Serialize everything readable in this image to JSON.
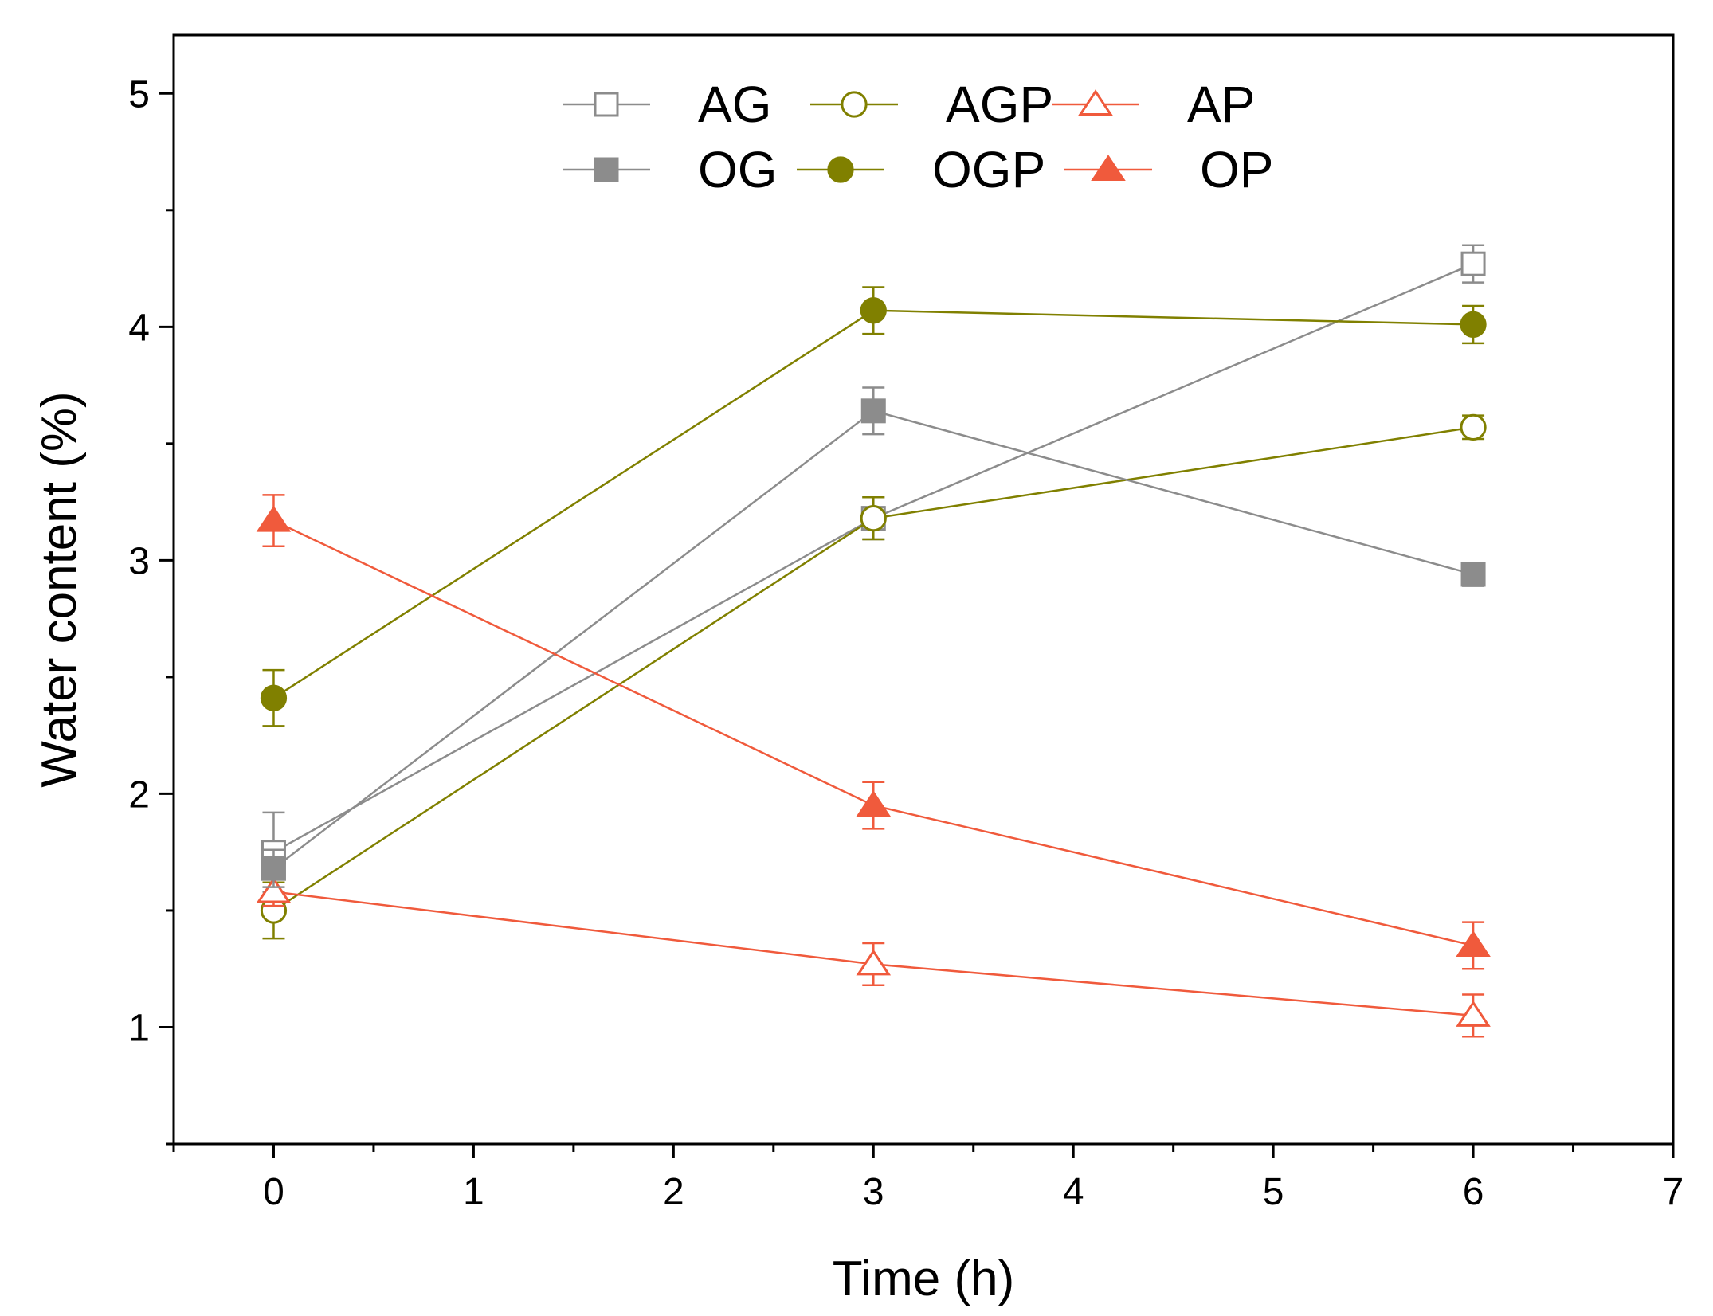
{
  "chart_data": {
    "type": "line",
    "title": "",
    "xlabel": "Time (h)",
    "ylabel": "Water content (%)",
    "xlim": [
      -0.5,
      7
    ],
    "ylim": [
      0.5,
      5.25
    ],
    "xticks": [
      0,
      1,
      2,
      3,
      4,
      5,
      6,
      7
    ],
    "xtick_labels": [
      "0",
      "1",
      "2",
      "3",
      "4",
      "5",
      "6",
      "7"
    ],
    "yticks": [
      1,
      2,
      3,
      4,
      5
    ],
    "ytick_labels": [
      "1",
      "2",
      "3",
      "4",
      "5"
    ],
    "x": [
      0,
      3,
      6
    ],
    "grid": false,
    "legend_position": "top-center",
    "series": [
      {
        "name": "AG",
        "values": [
          1.75,
          3.18,
          4.27
        ],
        "errors": [
          0.17,
          0.09,
          0.08
        ],
        "color": "#8c8c8c",
        "marker": "square",
        "filled": false
      },
      {
        "name": "AGP",
        "values": [
          1.5,
          3.18,
          3.57
        ],
        "errors": [
          0.12,
          0.09,
          0.05
        ],
        "color": "#808000",
        "marker": "circle",
        "filled": false
      },
      {
        "name": "AP",
        "values": [
          1.58,
          1.27,
          1.05
        ],
        "errors": [
          0.06,
          0.09,
          0.09
        ],
        "color": "#f05a3c",
        "marker": "triangle",
        "filled": false
      },
      {
        "name": "OG",
        "values": [
          1.68,
          3.64,
          2.94
        ],
        "errors": [
          0.08,
          0.1,
          0.05
        ],
        "color": "#8c8c8c",
        "marker": "square",
        "filled": true
      },
      {
        "name": "OGP",
        "values": [
          2.41,
          4.07,
          4.01
        ],
        "errors": [
          0.12,
          0.1,
          0.08
        ],
        "color": "#808000",
        "marker": "circle",
        "filled": true
      },
      {
        "name": "OP",
        "values": [
          3.17,
          1.95,
          1.35
        ],
        "errors": [
          0.11,
          0.1,
          0.1
        ],
        "color": "#f05a3c",
        "marker": "triangle",
        "filled": true
      }
    ]
  }
}
